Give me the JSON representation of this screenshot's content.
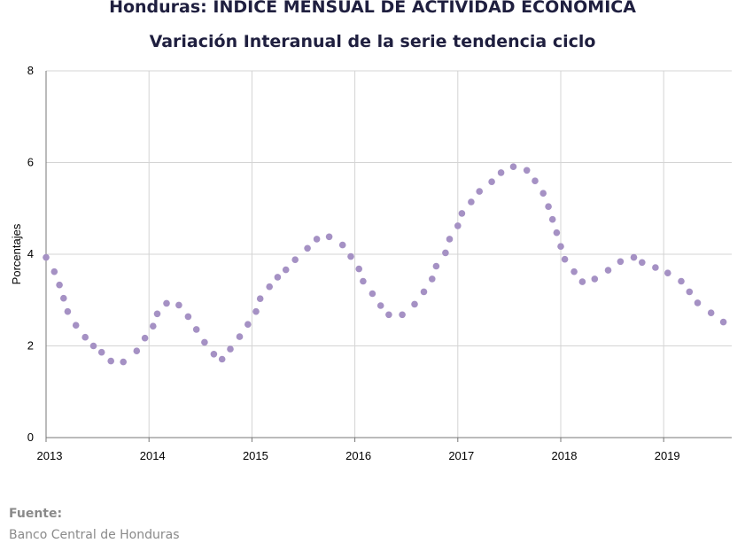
{
  "chart_data": {
    "type": "scatter",
    "title": "Honduras: INDICE MENSUAL DE ACTIVIDAD ECONOMICA",
    "subtitle": "Variación Interanual de la serie tendencia ciclo",
    "ylabel": "Porcentajes",
    "xlabel": "",
    "xlim": [
      2013.0,
      2019.65
    ],
    "ylim": [
      0,
      8
    ],
    "yticks": [
      "0",
      "2",
      "4",
      "6",
      "8"
    ],
    "xticks": [
      "2013",
      "2014",
      "2015",
      "2016",
      "2017",
      "2018",
      "2019"
    ],
    "grid": true,
    "legend": "none",
    "marker_color": "#a591c4",
    "x": [
      2013.0,
      2013.08,
      2013.13,
      2013.17,
      2013.21,
      2013.29,
      2013.38,
      2013.46,
      2013.54,
      2013.63,
      2013.75,
      2013.88,
      2013.96,
      2014.04,
      2014.08,
      2014.17,
      2014.29,
      2014.38,
      2014.46,
      2014.54,
      2014.63,
      2014.71,
      2014.79,
      2014.88,
      2014.96,
      2015.04,
      2015.08,
      2015.17,
      2015.25,
      2015.33,
      2015.42,
      2015.54,
      2015.63,
      2015.75,
      2015.88,
      2015.96,
      2016.04,
      2016.08,
      2016.17,
      2016.25,
      2016.33,
      2016.46,
      2016.58,
      2016.67,
      2016.75,
      2016.79,
      2016.88,
      2016.92,
      2017.0,
      2017.04,
      2017.13,
      2017.21,
      2017.33,
      2017.42,
      2017.54,
      2017.67,
      2017.75,
      2017.83,
      2017.88,
      2017.92,
      2017.96,
      2018.0,
      2018.04,
      2018.13,
      2018.21,
      2018.33,
      2018.46,
      2018.58,
      2018.71,
      2018.79,
      2018.92,
      2019.04,
      2019.17,
      2019.25,
      2019.33,
      2019.46,
      2019.58
    ],
    "y": [
      3.93,
      3.62,
      3.33,
      3.04,
      2.75,
      2.45,
      2.19,
      2.0,
      1.86,
      1.67,
      1.65,
      1.89,
      2.17,
      2.43,
      2.7,
      2.93,
      2.89,
      2.64,
      2.36,
      2.08,
      1.82,
      1.71,
      1.93,
      2.2,
      2.47,
      2.75,
      3.03,
      3.29,
      3.5,
      3.66,
      3.88,
      4.13,
      4.33,
      4.38,
      4.2,
      3.95,
      3.68,
      3.41,
      3.14,
      2.88,
      2.68,
      2.68,
      2.91,
      3.18,
      3.46,
      3.74,
      4.03,
      4.33,
      4.62,
      4.89,
      5.14,
      5.37,
      5.58,
      5.78,
      5.91,
      5.83,
      5.6,
      5.33,
      5.04,
      4.76,
      4.47,
      4.17,
      3.89,
      3.62,
      3.4,
      3.46,
      3.65,
      3.84,
      3.93,
      3.82,
      3.71,
      3.59,
      3.41,
      3.18,
      2.94,
      2.72,
      2.52
    ]
  },
  "source": {
    "label": "Fuente:",
    "value": "Banco Central de Honduras"
  }
}
